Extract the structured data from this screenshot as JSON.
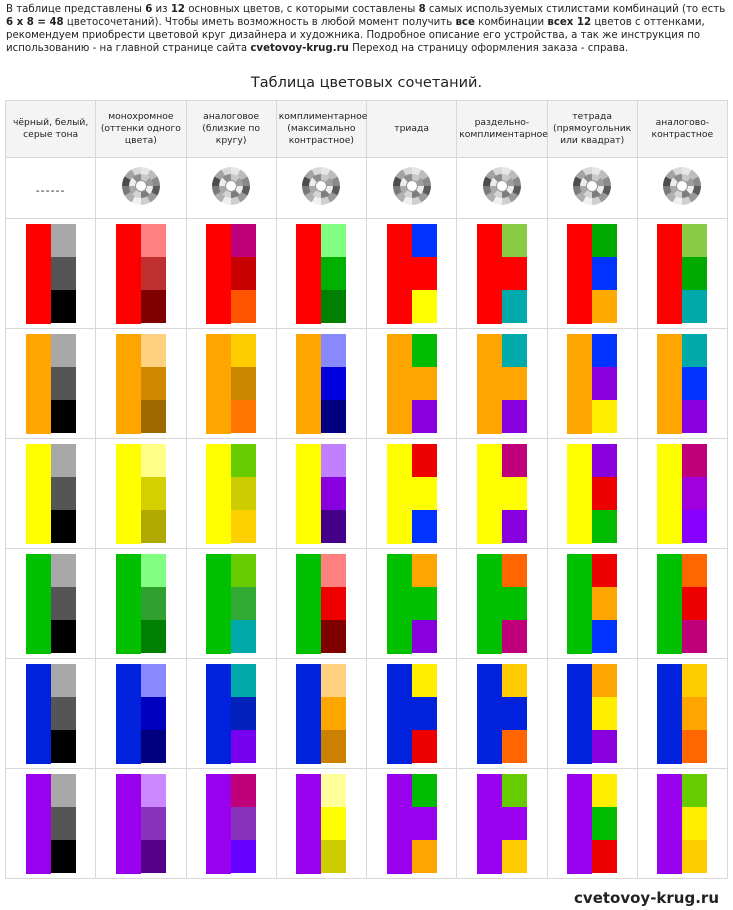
{
  "intro": {
    "t1": "В таблице представлены ",
    "b1": "6",
    "t2": " из ",
    "b2": "12",
    "t3": " основных цветов, с которыми составлены ",
    "b3": "8",
    "t4": " самых используемых стилистами комбинаций (то есть ",
    "b4": "6 х 8 = 48",
    "t5": " цветосочетаний). Чтобы иметь возможность в любой момент получить ",
    "b5": "все",
    "t6": " комбинации ",
    "b6": "всех 12",
    "t7": " цветов с оттенками, рекомендуем приобрести цветовой круг дизайнера и художника. Подробное описание его устройства, а так же инструкция по использованию - на главной странице сайта ",
    "b7": "cvetovoy-krug.ru",
    "t8": " Переход на страницу оформления заказа - справа."
  },
  "table_title": "Таблица цветовых сочетаний.",
  "headers": [
    "чёрный, белый, серые тона",
    "монохромное (оттенки одного цвета)",
    "аналоговое (близкие по кругу)",
    "комплиментарное (максимально контрастное)",
    "триада",
    "раздельно-комплиментарное",
    "тетрада (прямоугольник или квадрат)",
    "аналогово-контрастное"
  ],
  "first_wheel_cell": "------",
  "rows": [
    {
      "base": "#FF0000",
      "combos": [
        [
          "#A8A8A8",
          "#555555",
          "#000000"
        ],
        [
          "#FF8080",
          "#C03030",
          "#800000"
        ],
        [
          "#C0007A",
          "#C80000",
          "#FF5500"
        ],
        [
          "#80FF80",
          "#00B000",
          "#008000"
        ],
        [
          "#0033FF",
          "#FF0000",
          "#FFFF00"
        ],
        [
          "#88CC44",
          "#FF0000",
          "#00AAAA"
        ],
        [
          "#00AA00",
          "#0033FF",
          "#FFAA00"
        ],
        [
          "#88CC44",
          "#00AA00",
          "#00AAAA"
        ]
      ]
    },
    {
      "base": "#FFA500",
      "combos": [
        [
          "#A8A8A8",
          "#555555",
          "#000000"
        ],
        [
          "#FFD080",
          "#D08800",
          "#A06800"
        ],
        [
          "#FFCC00",
          "#CC8800",
          "#FF7700"
        ],
        [
          "#8888FF",
          "#0000DD",
          "#000080"
        ],
        [
          "#00BB00",
          "#FFA500",
          "#8800DD"
        ],
        [
          "#00AAAA",
          "#FFA500",
          "#8800DD"
        ],
        [
          "#0033FF",
          "#8800DD",
          "#FFEE00"
        ],
        [
          "#00AAAA",
          "#0033FF",
          "#8800DD"
        ]
      ]
    },
    {
      "base": "#FFFF00",
      "combos": [
        [
          "#A8A8A8",
          "#555555",
          "#000000"
        ],
        [
          "#FFFF88",
          "#D4D000",
          "#B0AA00"
        ],
        [
          "#66CC00",
          "#CCCC00",
          "#FFD000"
        ],
        [
          "#C080FF",
          "#8800DD",
          "#440088"
        ],
        [
          "#EE0000",
          "#FFFF00",
          "#0033FF"
        ],
        [
          "#C0007A",
          "#FFFF00",
          "#8800DD"
        ],
        [
          "#8800DD",
          "#EE0000",
          "#00BB00"
        ],
        [
          "#C0007A",
          "#A000DD",
          "#8800FF"
        ]
      ]
    },
    {
      "base": "#00C000",
      "combos": [
        [
          "#A8A8A8",
          "#555555",
          "#000000"
        ],
        [
          "#80FF80",
          "#30A030",
          "#008000"
        ],
        [
          "#66CC00",
          "#33AA33",
          "#00AAAA"
        ],
        [
          "#FF8080",
          "#EE0000",
          "#800000"
        ],
        [
          "#FFA500",
          "#00C000",
          "#8800DD"
        ],
        [
          "#FF6600",
          "#00C000",
          "#C0007A"
        ],
        [
          "#EE0000",
          "#FFA500",
          "#0033FF"
        ],
        [
          "#FF6600",
          "#EE0000",
          "#C0007A"
        ]
      ]
    },
    {
      "base": "#0022DD",
      "combos": [
        [
          "#A8A8A8",
          "#555555",
          "#000000"
        ],
        [
          "#8888FF",
          "#0000C0",
          "#000080"
        ],
        [
          "#00AAAA",
          "#0022BB",
          "#7700EE"
        ],
        [
          "#FFD080",
          "#FFA500",
          "#CC8000"
        ],
        [
          "#FFEE00",
          "#0022DD",
          "#EE0000"
        ],
        [
          "#FFCC00",
          "#0022DD",
          "#FF6600"
        ],
        [
          "#FFA500",
          "#FFEE00",
          "#8800DD"
        ],
        [
          "#FFCC00",
          "#FFA500",
          "#FF6600"
        ]
      ]
    },
    {
      "base": "#9900EE",
      "combos": [
        [
          "#A8A8A8",
          "#555555",
          "#000000"
        ],
        [
          "#CC88FF",
          "#8833BB",
          "#550088"
        ],
        [
          "#C0007A",
          "#8833BB",
          "#6600FF"
        ],
        [
          "#FFFF99",
          "#FFFF00",
          "#CCCC00"
        ],
        [
          "#00BB00",
          "#9900EE",
          "#FFA500"
        ],
        [
          "#66CC00",
          "#9900EE",
          "#FFCC00"
        ],
        [
          "#FFEE00",
          "#00BB00",
          "#EE0000"
        ],
        [
          "#66CC00",
          "#FFEE00",
          "#FFCC00"
        ]
      ]
    }
  ],
  "footer": "cvetovoy-krug.ru"
}
